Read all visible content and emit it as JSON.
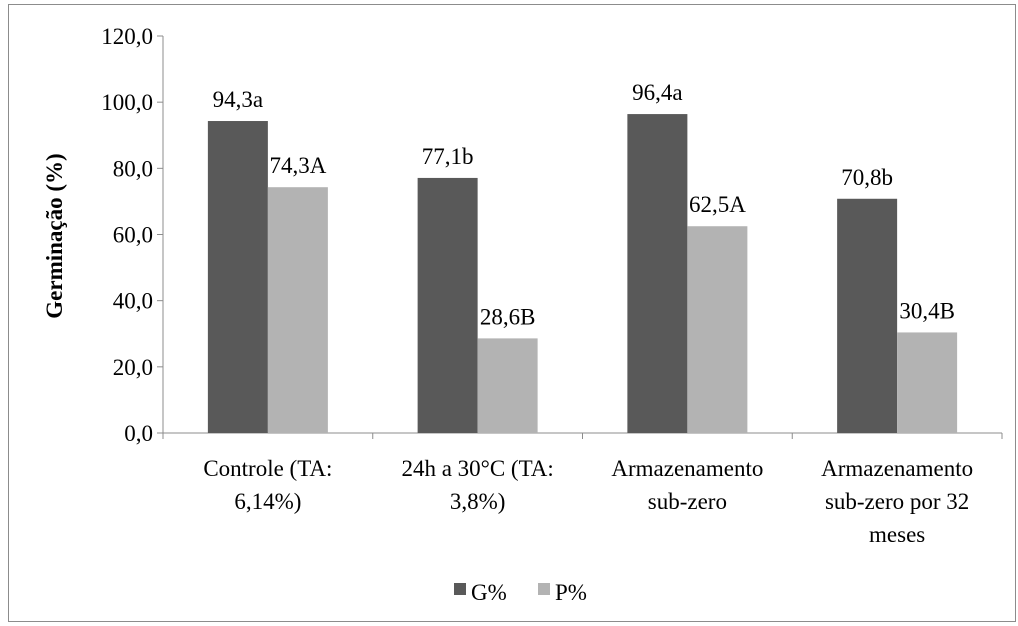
{
  "chart_data": {
    "type": "bar",
    "ylabel": "Germinação (%)",
    "ylim": [
      0,
      120
    ],
    "yticks": [
      "0,0",
      "20,0",
      "40,0",
      "60,0",
      "80,0",
      "100,0",
      "120,0"
    ],
    "grid": false,
    "legend_position": "bottom",
    "categories": [
      [
        "Controle (TA:",
        "6,14%)"
      ],
      [
        "24h a 30°C (TA:",
        "3,8%)"
      ],
      [
        "Armazenamento",
        "sub-zero"
      ],
      [
        "Armazenamento",
        "sub-zero por 32",
        "meses"
      ]
    ],
    "series": [
      {
        "name": "G%",
        "color": "#595959",
        "values": [
          94.3,
          77.1,
          96.4,
          70.8
        ],
        "labels": [
          "94,3a",
          "77,1b",
          "96,4a",
          "70,8b"
        ]
      },
      {
        "name": "P%",
        "color": "#b3b3b3",
        "values": [
          74.3,
          28.6,
          62.5,
          30.4
        ],
        "labels": [
          "74,3A",
          "28,6B",
          "62,5A",
          "30,4B"
        ]
      }
    ]
  }
}
